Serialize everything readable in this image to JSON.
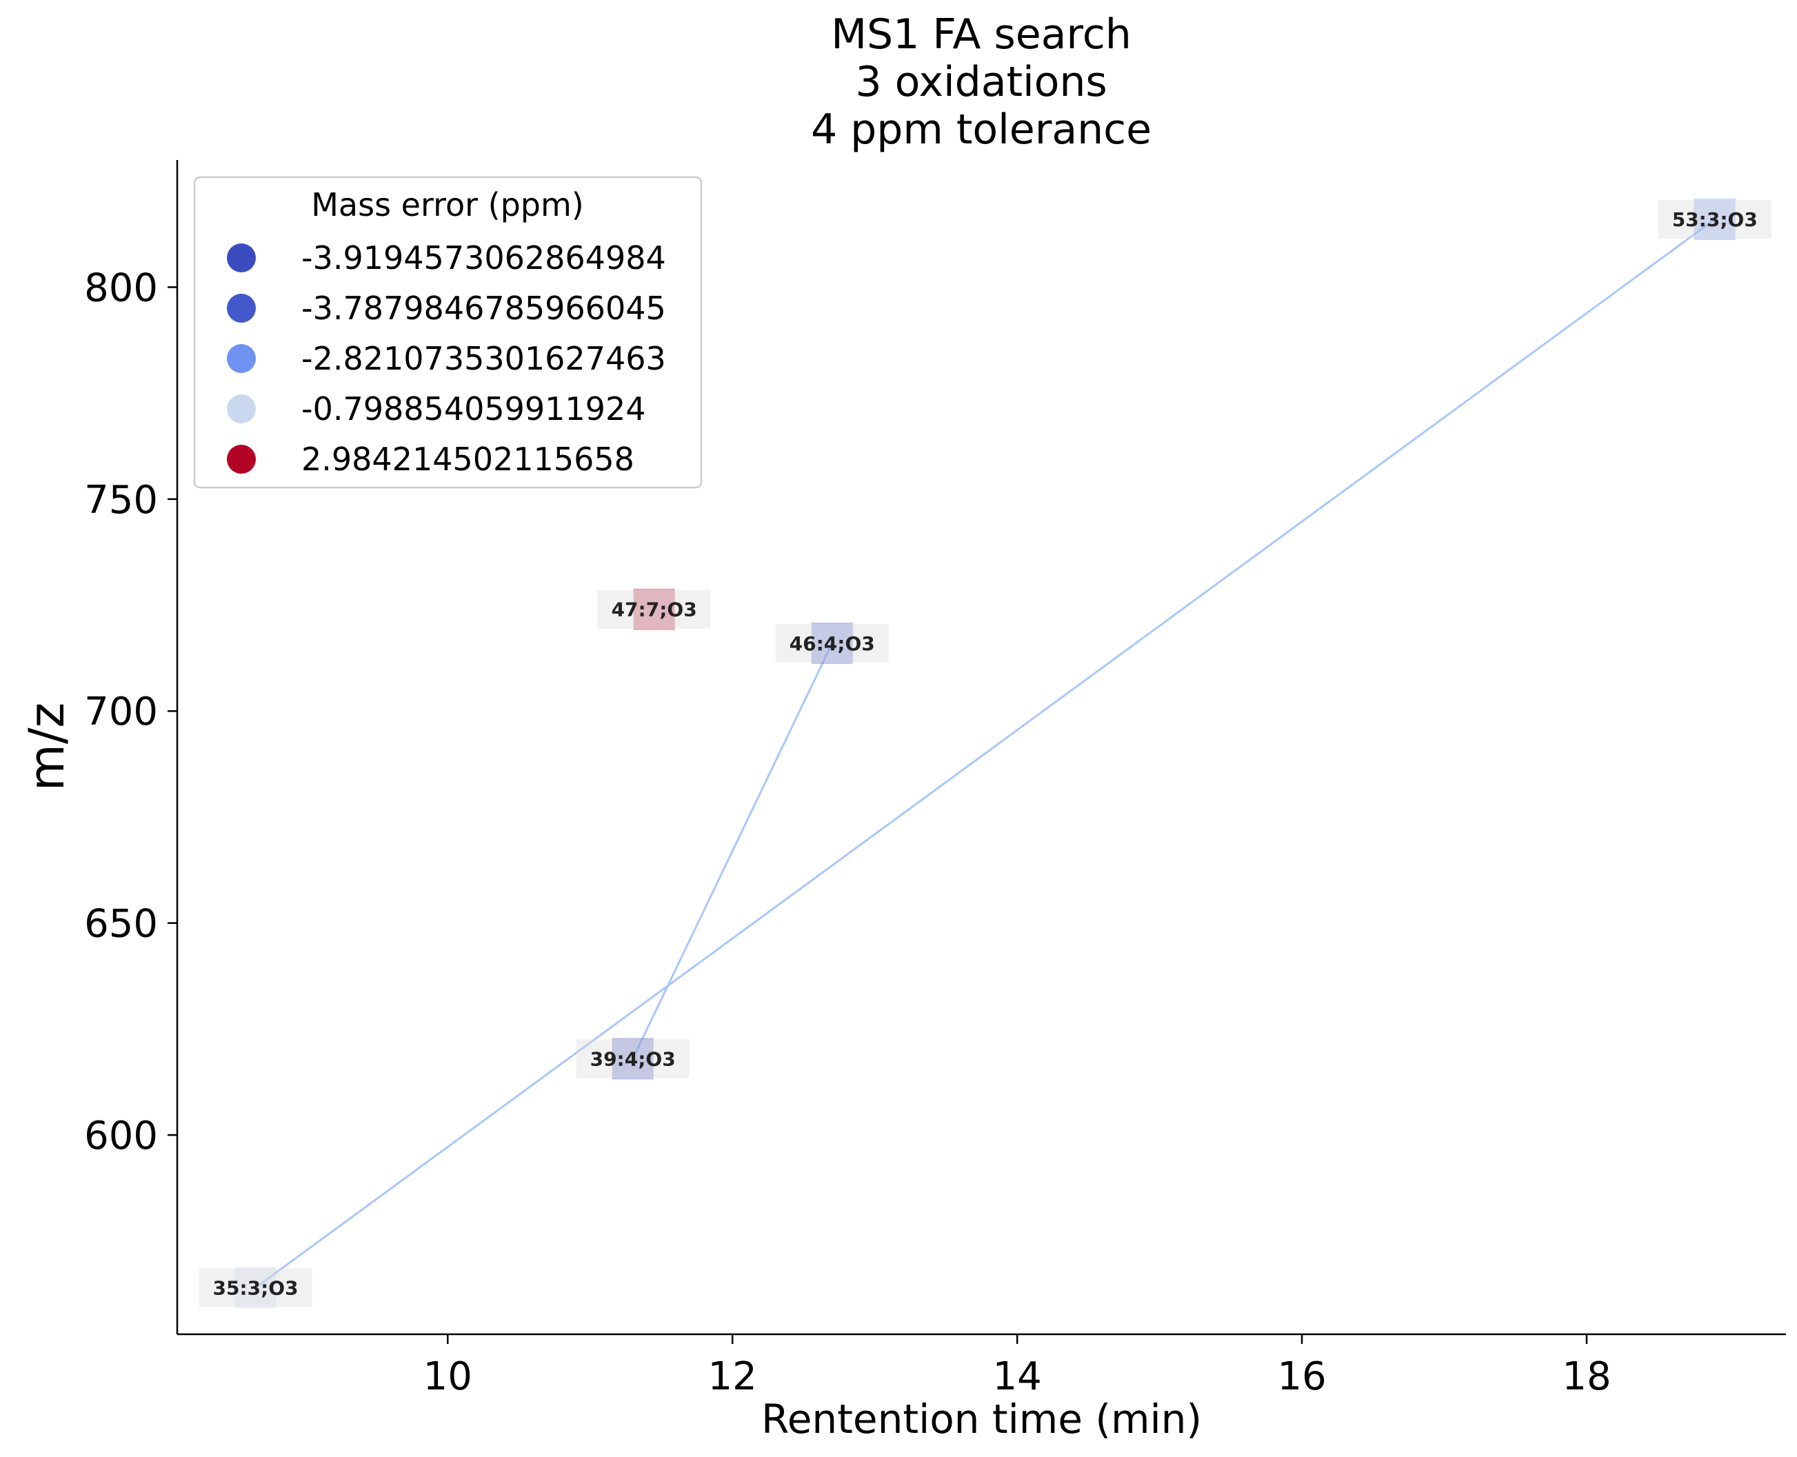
{
  "chart_data": {
    "type": "scatter",
    "title_lines": [
      "MS1 FA search",
      "3 oxidations",
      "4 ppm tolerance"
    ],
    "xlabel": "Rentention time (min)",
    "ylabel": "m/z",
    "xlim": [
      8.1,
      19.4
    ],
    "ylim": [
      553,
      830
    ],
    "xticks": [
      10,
      12,
      14,
      16,
      18
    ],
    "yticks": [
      600,
      650,
      700,
      750,
      800
    ],
    "legend": {
      "title": "Mass error (ppm)",
      "position": "upper-left",
      "entries": [
        {
          "label": "-3.9194573062864984",
          "color": "#3b4cc0"
        },
        {
          "label": "-3.7879846785966045",
          "color": "#4358cb"
        },
        {
          "label": "-2.8210735301627463",
          "color": "#6f92f3"
        },
        {
          "label": "-0.798854059911924",
          "color": "#cad8ef"
        },
        {
          "label": "2.984214502115658",
          "color": "#b40426"
        }
      ]
    },
    "points": [
      {
        "label": "35:3;O3",
        "x": 8.65,
        "y": 564,
        "color": "#cad8ef"
      },
      {
        "label": "39:4;O3",
        "x": 11.3,
        "y": 618,
        "color": "#3b4cc0"
      },
      {
        "label": "47:7;O3",
        "x": 11.45,
        "y": 724,
        "color": "#b40426"
      },
      {
        "label": "46:4;O3",
        "x": 12.7,
        "y": 716,
        "color": "#4358cb"
      },
      {
        "label": "53:3;O3",
        "x": 18.9,
        "y": 816,
        "color": "#6f92f3"
      }
    ],
    "lines": [
      {
        "from": "35:3;O3",
        "to": "53:3;O3",
        "color": "#aac7fd"
      },
      {
        "from": "39:4;O3",
        "to": "46:4;O3",
        "color": "#aac7fd"
      }
    ]
  }
}
